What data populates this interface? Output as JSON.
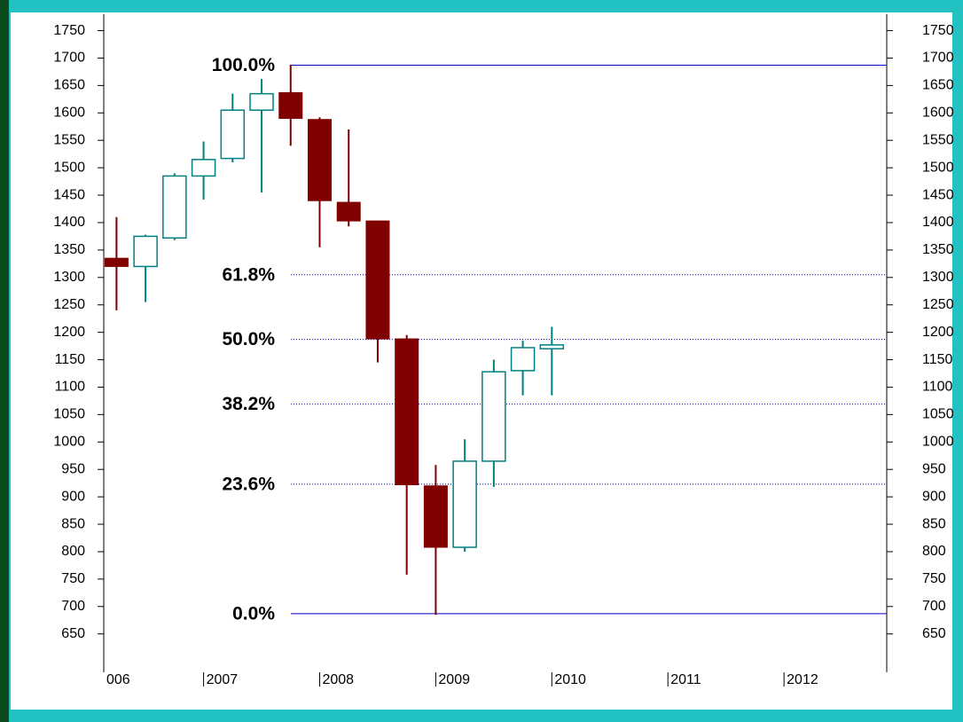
{
  "chart_data": {
    "type": "candlestick",
    "x": [
      2006.25,
      2006.5,
      2006.75,
      2007.0,
      2007.25,
      2007.5,
      2007.75,
      2008.0,
      2008.25,
      2008.5,
      2008.75,
      2009.0,
      2009.25,
      2009.5,
      2009.75,
      2010.0
    ],
    "open": [
      1335,
      1320,
      1372,
      1485,
      1517,
      1605,
      1637,
      1588,
      1437,
      1403,
      1188,
      920,
      808,
      965,
      1130,
      1170
    ],
    "high": [
      1410,
      1378,
      1490,
      1548,
      1635,
      1662,
      1688,
      1592,
      1570,
      1403,
      1195,
      958,
      1005,
      1150,
      1185,
      1210
    ],
    "low": [
      1240,
      1255,
      1368,
      1442,
      1510,
      1455,
      1540,
      1355,
      1393,
      1145,
      758,
      685,
      800,
      918,
      1085,
      1085
    ],
    "close": [
      1320,
      1375,
      1485,
      1515,
      1605,
      1635,
      1590,
      1440,
      1403,
      1188,
      922,
      808,
      965,
      1128,
      1172,
      1177
    ],
    "up_color": "#008080",
    "down_color": "#800000",
    "xlim": [
      2006.14,
      2012.885
    ],
    "xticks": [
      {
        "value": 2006,
        "label": "006"
      },
      2007,
      2008,
      2009,
      2010,
      2011,
      2012
    ],
    "ylim": [
      580,
      1780
    ],
    "yticks": [
      650,
      700,
      750,
      800,
      850,
      900,
      950,
      1000,
      1050,
      1100,
      1150,
      1200,
      1250,
      1300,
      1350,
      1400,
      1450,
      1500,
      1550,
      1600,
      1650,
      1700,
      1750
    ],
    "y2lim": [
      580,
      1780
    ],
    "y2ticks": [
      650,
      700,
      750,
      800,
      850,
      900,
      950,
      1000,
      1050,
      1100,
      1150,
      1200,
      1250,
      1300,
      1350,
      1400,
      1450,
      1500,
      1550,
      1600,
      1650,
      1700,
      1750
    ],
    "level_color": "#0000cc",
    "levels": [
      {
        "label": "100.0%",
        "value": 1687,
        "style": "solid"
      },
      {
        "label": "61.8%",
        "value": 1305,
        "style": "dotted"
      },
      {
        "label": "50.0%",
        "value": 1187,
        "style": "dotted"
      },
      {
        "label": "38.2%",
        "value": 1069,
        "style": "dotted"
      },
      {
        "label": "23.6%",
        "value": 923,
        "style": "dotted"
      },
      {
        "label": "0.0%",
        "value": 687,
        "style": "solid"
      }
    ]
  }
}
